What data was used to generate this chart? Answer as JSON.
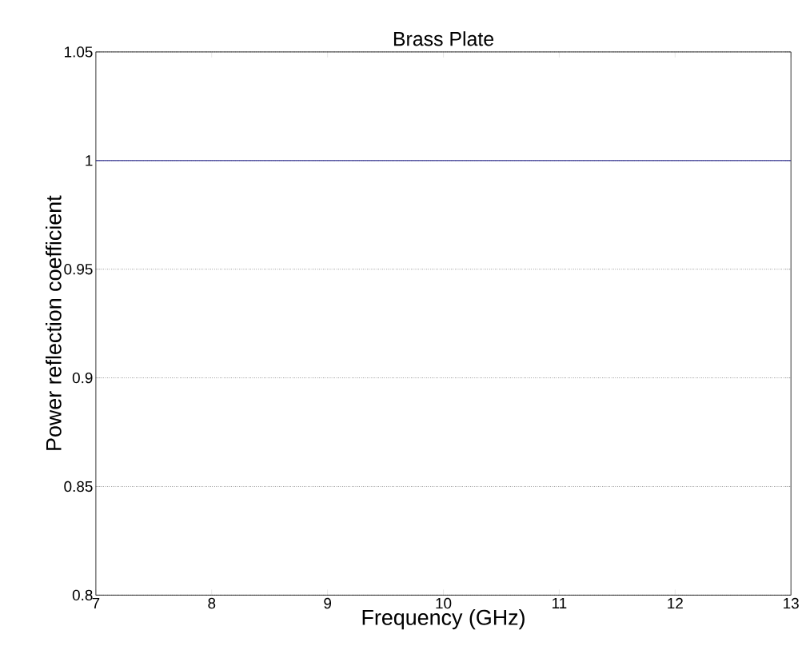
{
  "chart_data": {
    "type": "line",
    "title": "Brass Plate",
    "xlabel": "Frequency (GHz)",
    "ylabel": "Power reflection coefficient",
    "x": [
      7,
      13
    ],
    "series": [
      {
        "color": "#2b2b8f",
        "values": [
          1,
          1
        ]
      }
    ],
    "xlim": [
      7,
      13
    ],
    "ylim": [
      0.8,
      1.05
    ],
    "xticks": [
      7,
      8,
      9,
      10,
      11,
      12,
      13
    ],
    "yticks": [
      0.8,
      0.85,
      0.9,
      0.95,
      1,
      1.05
    ],
    "grid": "y"
  }
}
